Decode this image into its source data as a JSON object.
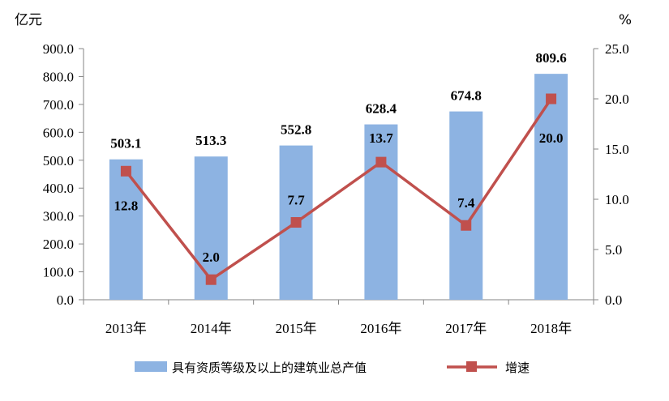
{
  "chart_data": {
    "type": "bar+line",
    "categories": [
      "2013年",
      "2014年",
      "2015年",
      "2016年",
      "2017年",
      "2018年"
    ],
    "series": [
      {
        "name": "具有资质等级及以上的建筑业总产值",
        "type": "bar",
        "axis": "left",
        "values": [
          503.1,
          513.3,
          552.8,
          628.4,
          674.8,
          809.6
        ],
        "labels": [
          "503.1",
          "513.3",
          "552.8",
          "628.4",
          "674.8",
          "809.6"
        ]
      },
      {
        "name": "增速",
        "type": "line",
        "axis": "right",
        "values": [
          12.8,
          2.0,
          7.7,
          13.7,
          7.4,
          20.0
        ],
        "labels": [
          "12.8",
          "2.0",
          "7.7",
          "13.7",
          "7.4",
          "20.0"
        ]
      }
    ],
    "y_left": {
      "unit": "亿元",
      "range": [
        0,
        900
      ],
      "ticks": [
        "0.0",
        "100.0",
        "200.0",
        "300.0",
        "400.0",
        "500.0",
        "600.0",
        "700.0",
        "800.0",
        "900.0"
      ]
    },
    "y_right": {
      "unit": "%",
      "range": [
        0,
        25
      ],
      "ticks": [
        "0.0",
        "5.0",
        "10.0",
        "15.0",
        "20.0",
        "25.0"
      ]
    },
    "grid": false,
    "legend_position": "bottom",
    "colors": {
      "bar": "#8DB3E2",
      "line": "#C0504D",
      "axis": "#868686"
    }
  }
}
